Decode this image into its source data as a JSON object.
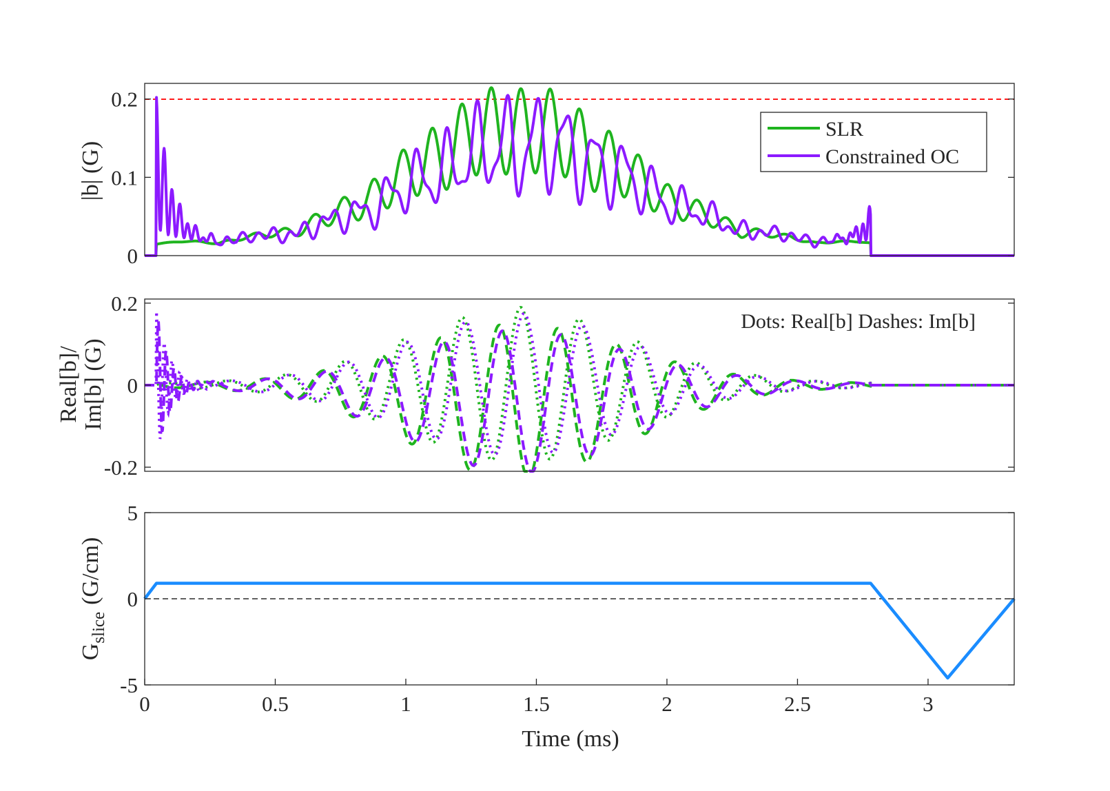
{
  "chart_data": [
    {
      "type": "line",
      "panel": "top",
      "ylabel": "|b| (G)",
      "xlim": [
        0,
        3.33
      ],
      "ylim": [
        0,
        0.22
      ],
      "yticks": [
        0,
        0.1,
        0.2
      ],
      "ytick_labels": [
        "0",
        "0.1",
        "0.2"
      ],
      "grid": false,
      "reference_line": {
        "y": 0.2,
        "style": "dashed",
        "color": "#ff1a1a"
      },
      "legend": {
        "position": "top-right",
        "entries": [
          "SLR",
          "Constrained OC"
        ]
      },
      "series": [
        {
          "name": "SLR",
          "color": "#1fb41f",
          "style": "solid"
        },
        {
          "name": "Constrained OC",
          "color": "#8c1aff",
          "style": "solid"
        }
      ]
    },
    {
      "type": "line",
      "panel": "middle",
      "ylabel_lines": [
        "Real[b]/",
        "Im[b] (G)"
      ],
      "xlim": [
        0,
        3.33
      ],
      "ylim": [
        -0.21,
        0.21
      ],
      "yticks": [
        -0.2,
        0,
        0.2
      ],
      "ytick_labels": [
        "-0.2",
        "0",
        "0.2"
      ],
      "grid": false,
      "annotation": "Dots: Real[b] Dashes: Im[b]",
      "series": [
        {
          "name": "SLR Real[b]",
          "color": "#1fb41f",
          "style": "dotted"
        },
        {
          "name": "SLR Im[b]",
          "color": "#1fb41f",
          "style": "dashed"
        },
        {
          "name": "Constrained OC Real[b]",
          "color": "#8c1aff",
          "style": "dotted"
        },
        {
          "name": "Constrained OC Im[b]",
          "color": "#8c1aff",
          "style": "dashed"
        }
      ]
    },
    {
      "type": "line",
      "panel": "bottom",
      "ylabel_main": "G",
      "ylabel_sub": "slice",
      "ylabel_unit": "(G/cm)",
      "xlabel": "Time (ms)",
      "xlim": [
        0,
        3.33
      ],
      "ylim": [
        -5,
        5
      ],
      "yticks": [
        -5,
        0,
        5
      ],
      "ytick_labels": [
        "-5",
        "0",
        "5"
      ],
      "xticks": [
        0,
        0.5,
        1,
        1.5,
        2,
        2.5,
        3
      ],
      "xtick_labels": [
        "0",
        "0.5",
        "1",
        "1.5",
        "2",
        "2.5",
        "3"
      ],
      "grid": false,
      "reference_line": {
        "y": 0,
        "style": "dashed",
        "color": "#000000"
      },
      "series": [
        {
          "name": "G_slice",
          "color": "#1a8cff",
          "style": "solid",
          "x": [
            0,
            0.045,
            2.78,
            3.075,
            3.33
          ],
          "y": [
            0,
            0.9,
            0.9,
            -4.6,
            0
          ]
        }
      ]
    }
  ]
}
